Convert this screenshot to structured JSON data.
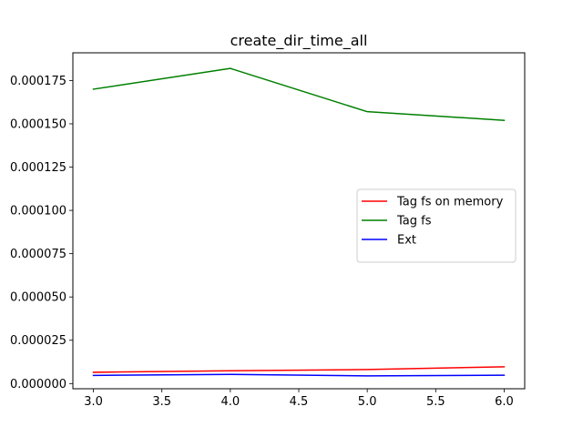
{
  "chart_data": {
    "type": "line",
    "title": "create_dir_time_all",
    "xlabel": "",
    "ylabel": "",
    "xlim": [
      2.85,
      6.15
    ],
    "ylim": [
      -3e-06,
      0.000191
    ],
    "xticks": [
      3.0,
      3.5,
      4.0,
      4.5,
      5.0,
      5.5,
      6.0
    ],
    "xtick_labels": [
      "3.0",
      "3.5",
      "4.0",
      "4.5",
      "5.0",
      "5.5",
      "6.0"
    ],
    "yticks": [
      0.0,
      2.5e-05,
      5e-05,
      7.5e-05,
      0.0001,
      0.000125,
      0.00015,
      0.000175
    ],
    "ytick_labels": [
      "0.000000",
      "0.000025",
      "0.000050",
      "0.000075",
      "0.000100",
      "0.000125",
      "0.000150",
      "0.000175"
    ],
    "grid": false,
    "legend_position": "center-right",
    "x": [
      3,
      4,
      5,
      6
    ],
    "series": [
      {
        "name": "Tag fs on memory",
        "color": "#ff0000",
        "values": [
          6.5e-06,
          7.4e-06,
          8.1e-06,
          9.7e-06
        ]
      },
      {
        "name": "Tag fs",
        "color": "#008000",
        "values": [
          0.00017,
          0.000182,
          0.000157,
          0.000152
        ]
      },
      {
        "name": "Ext",
        "color": "#0000ff",
        "values": [
          4.7e-06,
          5.3e-06,
          4.4e-06,
          4.8e-06
        ]
      }
    ]
  }
}
